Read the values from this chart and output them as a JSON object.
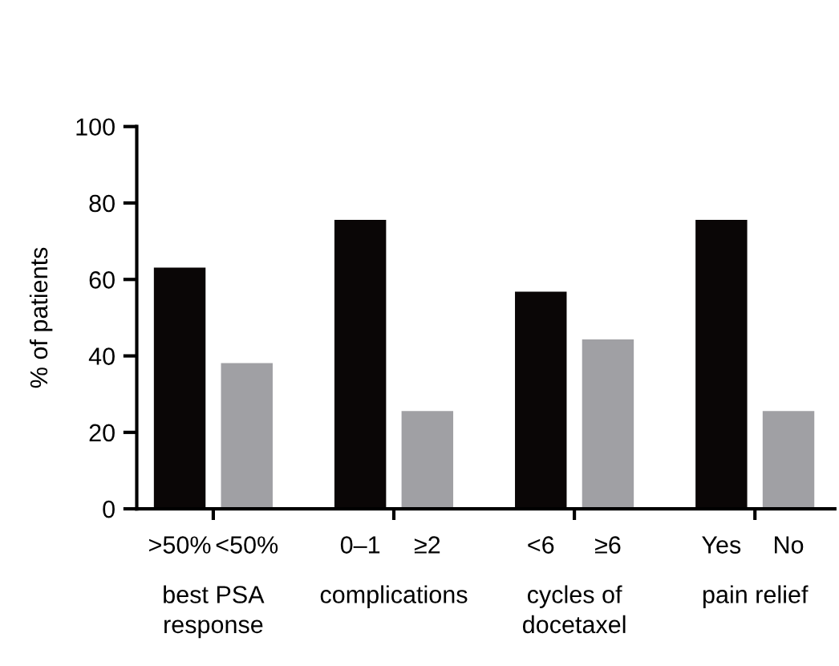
{
  "chart_data": {
    "type": "bar",
    "ylabel": "% of patients",
    "categories": [
      ">50%",
      "<50%",
      "0–1",
      "≥2",
      "<6",
      "≥6",
      "Yes",
      "No"
    ],
    "values": [
      63.1,
      38.1,
      75.6,
      25.6,
      56.8,
      44.3,
      75.6,
      25.6
    ],
    "colors": [
      "#0a0606",
      "#a0a0a4",
      "#0a0606",
      "#a0a0a4",
      "#0a0606",
      "#a0a0a4",
      "#0a0606",
      "#a0a0a4"
    ],
    "annotations": [
      "best PSA\nresponse",
      "complications",
      "cycles of\ndocetaxel",
      "pain relief"
    ],
    "ylim": [
      0,
      100
    ],
    "yticks": [
      0,
      20,
      40,
      60,
      80,
      100
    ],
    "grid": false,
    "legend": false
  }
}
